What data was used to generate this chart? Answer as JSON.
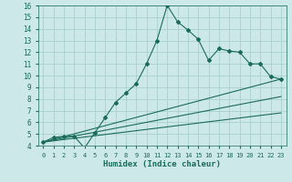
{
  "xlabel": "Humidex (Indice chaleur)",
  "bg_color": "#cce8e8",
  "grid_color": "#a8d0d0",
  "line_color": "#1a6b5a",
  "xlim": [
    -0.5,
    23.5
  ],
  "ylim": [
    4,
    16
  ],
  "xticks": [
    0,
    1,
    2,
    3,
    4,
    5,
    6,
    7,
    8,
    9,
    10,
    11,
    12,
    13,
    14,
    15,
    16,
    17,
    18,
    19,
    20,
    21,
    22,
    23
  ],
  "yticks": [
    4,
    5,
    6,
    7,
    8,
    9,
    10,
    11,
    12,
    13,
    14,
    15,
    16
  ],
  "series_main": {
    "x": [
      0,
      1,
      2,
      3,
      4,
      5,
      6,
      7,
      8,
      9,
      10,
      11,
      12,
      13,
      14,
      15,
      16,
      17,
      18,
      19,
      20,
      21,
      22,
      23
    ],
    "y": [
      4.3,
      4.7,
      4.8,
      4.8,
      3.8,
      5.1,
      6.4,
      7.7,
      8.5,
      9.3,
      11.0,
      13.0,
      16.0,
      14.6,
      13.9,
      13.1,
      11.3,
      12.3,
      12.1,
      12.0,
      11.0,
      11.0,
      9.9,
      9.7
    ]
  },
  "series_lines": [
    {
      "x": [
        0,
        23
      ],
      "y": [
        4.3,
        9.7
      ]
    },
    {
      "x": [
        0,
        23
      ],
      "y": [
        4.3,
        8.2
      ]
    },
    {
      "x": [
        0,
        23
      ],
      "y": [
        4.3,
        6.8
      ]
    }
  ]
}
